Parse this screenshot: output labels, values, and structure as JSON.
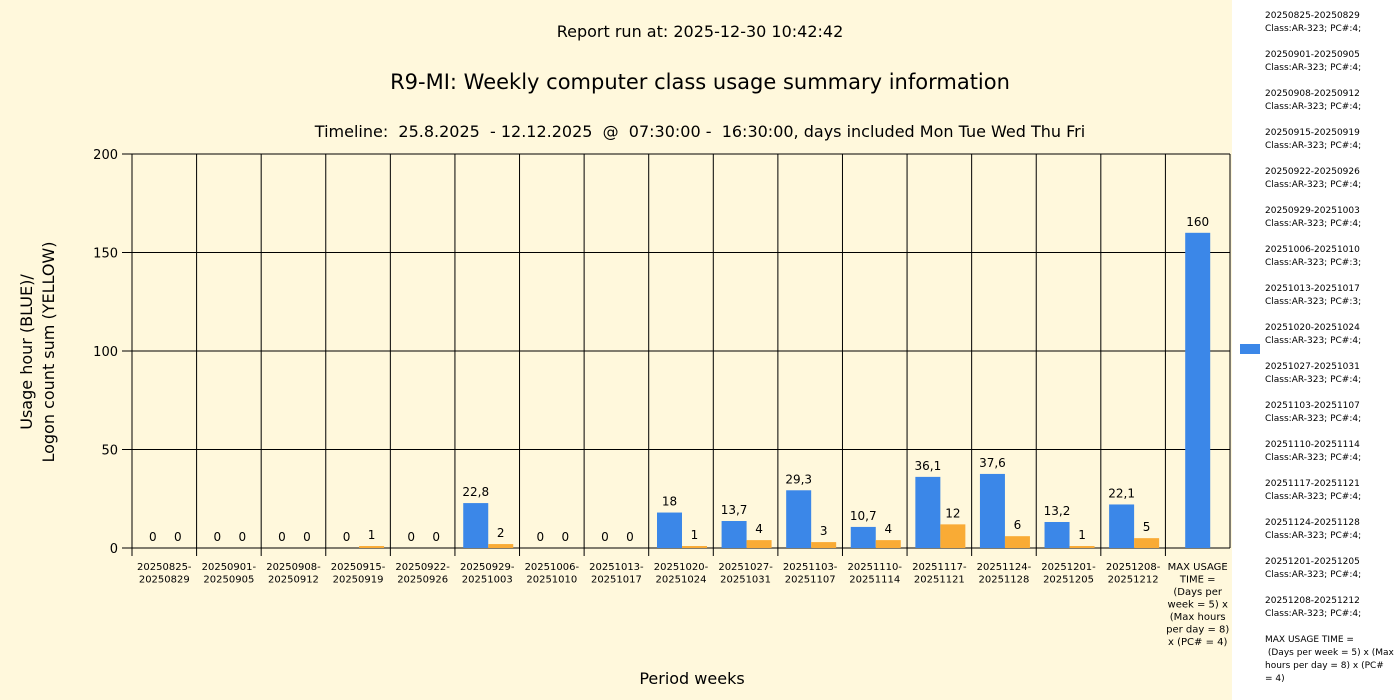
{
  "report_run": "Report run at: 2025-12-30 10:42:42",
  "title": "R9-MI: Weekly computer class usage summary information",
  "subtitle": "Timeline:  25.8.2025  - 12.12.2025  @  07:30:00 -  16:30:00, days included Mon Tue Wed Thu Fri",
  "colors": {
    "blue": "#3b87e8",
    "yellow": "#f9ab35",
    "background": "#fff8dc"
  },
  "chart_data": {
    "type": "bar",
    "xlabel": "Period weeks",
    "ylabel_lines": [
      "Usage hour (BLUE)/",
      "Logon count sum (YELLOW)"
    ],
    "ylim": [
      0,
      200
    ],
    "yticks": [
      "0",
      "50",
      "100",
      "150",
      "200"
    ],
    "grid": true,
    "legend_position": "right",
    "categories": [
      [
        "20250825-",
        "20250829"
      ],
      [
        "20250901-",
        "20250905"
      ],
      [
        "20250908-",
        "20250912"
      ],
      [
        "20250915-",
        "20250919"
      ],
      [
        "20250922-",
        "20250926"
      ],
      [
        "20250929-",
        "20251003"
      ],
      [
        "20251006-",
        "20251010"
      ],
      [
        "20251013-",
        "20251017"
      ],
      [
        "20251020-",
        "20251024"
      ],
      [
        "20251027-",
        "20251031"
      ],
      [
        "20251103-",
        "20251107"
      ],
      [
        "20251110-",
        "20251114"
      ],
      [
        "20251117-",
        "20251121"
      ],
      [
        "20251124-",
        "20251128"
      ],
      [
        "20251201-",
        "20251205"
      ],
      [
        "20251208-",
        "20251212"
      ],
      [
        "MAX USAGE",
        "TIME =",
        "(Days per",
        "week = 5) x",
        "(Max hours",
        "per day = 8)",
        "x (PC# = 4)"
      ]
    ],
    "series": [
      {
        "color": "#3b87e8",
        "values": [
          0,
          0,
          0,
          0,
          0,
          22.8,
          0,
          0,
          18,
          13.7,
          29.3,
          10.7,
          36.1,
          37.6,
          13.2,
          22.1,
          160
        ],
        "labels": [
          "0",
          "0",
          "0",
          "0",
          "0",
          "22,8",
          "0",
          "0",
          "18",
          "13,7",
          "29,3",
          "10,7",
          "36,1",
          "37,6",
          "13,2",
          "22,1",
          "160"
        ]
      },
      {
        "color": "#f9ab35",
        "values": [
          0,
          0,
          0,
          1,
          0,
          2,
          0,
          0,
          1,
          4,
          3,
          4,
          12,
          6,
          1,
          5,
          null
        ],
        "labels": [
          "0",
          "0",
          "0",
          "1",
          "0",
          "2",
          "0",
          "0",
          "1",
          "4",
          "3",
          "4",
          "12",
          "6",
          "1",
          "5",
          ""
        ]
      }
    ]
  },
  "legend": {
    "entries": [
      [
        "20250825-20250829",
        "Class:AR-323; PC#:4;"
      ],
      [
        "20250901-20250905",
        "Class:AR-323; PC#:4;"
      ],
      [
        "20250908-20250912",
        "Class:AR-323; PC#:4;"
      ],
      [
        "20250915-20250919",
        "Class:AR-323; PC#:4;"
      ],
      [
        "20250922-20250926",
        "Class:AR-323; PC#:4;"
      ],
      [
        "20250929-20251003",
        "Class:AR-323; PC#:4;"
      ],
      [
        "20251006-20251010",
        "Class:AR-323; PC#:3;"
      ],
      [
        "20251013-20251017",
        "Class:AR-323; PC#:3;"
      ],
      [
        "20251020-20251024",
        "Class:AR-323; PC#:4;"
      ],
      [
        "20251027-20251031",
        "Class:AR-323; PC#:4;"
      ],
      [
        "20251103-20251107",
        "Class:AR-323; PC#:4;"
      ],
      [
        "20251110-20251114",
        "Class:AR-323; PC#:4;"
      ],
      [
        "20251117-20251121",
        "Class:AR-323; PC#:4;"
      ],
      [
        "20251124-20251128",
        "Class:AR-323; PC#:4;"
      ],
      [
        "20251201-20251205",
        "Class:AR-323; PC#:4;"
      ],
      [
        "20251208-20251212",
        "Class:AR-323; PC#:4;"
      ],
      [
        "MAX USAGE TIME =",
        " (Days per week = 5) x (Max",
        "hours per day = 8) x (PC#",
        "= 4)"
      ]
    ]
  }
}
